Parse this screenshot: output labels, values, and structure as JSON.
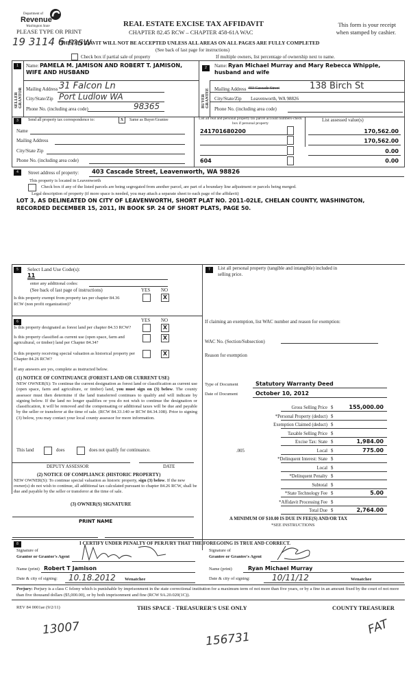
{
  "header": {
    "logo_line1": "Department of",
    "logo_line2": "Revenue",
    "logo_line3": "Washington State",
    "please_type": "PLEASE TYPE OR PRINT",
    "title": "REAL ESTATE EXCISE TAX AFFIDAVIT",
    "chapter": "CHAPTER 82.45 RCW – CHAPTER 458-61A WAC",
    "receipt_line1": "This form is your receipt",
    "receipt_line2": "when stamped by cashier.",
    "warning": "THIS AFFIDAVIT WILL NOT BE ACCEPTED UNLESS ALL AREAS ON ALL PAGES ARE FULLY COMPLETED",
    "see_back": "(See back of last page for instructions)",
    "partial_sale": "Check box if partial sale of property",
    "multiple_owners": "If multiple owners, list percentage of ownership next to name.",
    "handwritten_note": "19 3114 6 msw"
  },
  "seller": {
    "num": "1",
    "side_label": "SELLER GRANTOR",
    "name_label": "Name:",
    "name": "PAMELA M. JAMISON AND ROBERT T. JAMISON, WIFE AND HUSBAND",
    "mailing_label": "Mailing Address",
    "mailing": "31 Falcon Ln",
    "city_label": "City/State/Zip",
    "city": "Port Ludlow WA",
    "phone_label": "Phone No. (including area code)",
    "phone": "98365"
  },
  "buyer": {
    "num": "2",
    "side_label": "BUYER GRANTEE",
    "name_label": "Name:",
    "name": "Ryan Michael Murray and Mary Rebecca Whipple, husband and wife",
    "mailing_label": "Mailing Address",
    "mailing_struck": "403 Cascade Street",
    "mailing": "138 Birch St",
    "city_label": "City/State/Zip",
    "city": "Leavenworth, WA 98826",
    "phone_label": "Phone No. (including area code)"
  },
  "section3": {
    "num": "3",
    "send_label": "Send all property tax correspondence to:",
    "same_checked": "X",
    "same_label": "Same as Buyer/Grantee",
    "name_label": "Name",
    "mailing_label": "Mailing Address",
    "city_label": "City/State Zip",
    "phone_label": "Phone No. (including area code)",
    "parcel_header": "List all real and personal property tax parcel account numbers-check box if personal property",
    "assessed_header": "List assessed value(s)",
    "parcels": [
      "241701680200",
      "",
      "",
      "604"
    ],
    "values": [
      "170,562.00",
      "170,562.00",
      "0.00",
      "0.00"
    ]
  },
  "section4": {
    "num": "4",
    "street_label": "Street address of property:",
    "street": "403 Cascade Street, Leavenworth, WA 98826",
    "located": "This property is located in Leavenworth",
    "segregated": "Check box if any of the listed parcels are being segregated from another parcel, are part of a boundary line adjustment or parcels being merged.",
    "legal_label": "Legal description of property (if more space is needed, you may attach a separate sheet to each page of the affidavit)",
    "legal_line1": "LOT 3, AS DELINEATED ON CITY OF LEAVENWORTH, SHORT PLAT NO. 2011-02LE, CHELAN COUNTY, WASHINGTON,",
    "legal_line2": "RECORDED DECEMBER 15, 2011, IN BOOK SP. 24 OF SHORT PLATS, PAGE 50."
  },
  "section5": {
    "num": "5",
    "label": "Select Land Use Code(s):",
    "code": "11",
    "additional": "enter any additional codes:",
    "see_back": "(See back of last page of instructions)",
    "yes": "YES",
    "no": "NO",
    "exempt_q": "Is this property exempt from property tax per chapter 84.36 RCW (non profit organization)?",
    "exempt_no": "X"
  },
  "section6": {
    "num": "6",
    "yes": "YES",
    "no": "NO",
    "q1": "Is this property designated as forest land per chapter 84.33 RCW?",
    "q2": "Is this property classified as current use (open space, farm and agricultural, or timber) land per Chapter 84.34?",
    "q3": "Is this property receiving special valuation as historical property per Chapter 84.26 RCW?",
    "mark": "X",
    "if_yes": "If any answers are yes, complete as instructed below.",
    "notice1_title": "(1) NOTICE OF CONTINUANCE (FOREST LAND OR CURRENT USE)",
    "notice1_a": "NEW OWNER(S): To continue the current designation as forest land or classification as current use (open space, farm and agriculture, or timber) land, ",
    "notice1_bold": "you must sign on (3) below",
    "notice1_b": ". The county assessor must then determine if the land transferred continues to qualify and will indicate by signing below. If the land no longer qualifies or you do not wish to continue the designation or classification, it will be removed and the compensating or additional taxes will be due and payable by the seller or transferor at the time of sale. (RCW 84.33.140 or RCW 84.34.108). Prior to signing (3) below, you may contact your local county assessor for more information.",
    "this_land": "This land",
    "does": "does",
    "does_not": "does not qualify for continuance.",
    "deputy": "DEPUTY ASSESSOR",
    "date": "DATE",
    "notice2_title": "(2) NOTICE OF COMPLIANCE (HISTORIC PROPERTY)",
    "notice2_a": "NEW OWNER(S): To continue special valuation as historic property, ",
    "notice2_bold": "sign (3) below",
    "notice2_b": ". If the new owner(s) do not wish to continue, all additional tax calculated pursuant to chapter 84.26 RCW, shall be due and payable by the seller or transferor at the time of sale.",
    "owner_sig": "(3) OWNER(S) SIGNATURE",
    "print_name": "PRINT NAME"
  },
  "section7": {
    "num": "7",
    "label": "List all personal property (tangible and intangible) included in selling price.",
    "exemption_label": "If claiming an exemption, list WAC number and reason for exemption:",
    "wac_label": "WAC No. (Section/Subsection)",
    "reason_label": "Reason for exemption",
    "type_label": "Type of Document",
    "type": "Statutory Warranty Deed",
    "date_label": "Date of Document",
    "date": "October 10, 2012"
  },
  "totals": [
    {
      "label": "Gross Selling Price",
      "value": "155,000.00"
    },
    {
      "label": "*Personal Property (deduct)",
      "value": ""
    },
    {
      "label": "Exemption Claimed (deduct)",
      "value": ""
    },
    {
      "label": "Taxable Selling Price",
      "value": ""
    },
    {
      "label": "Excise Tax:  State",
      "value": "1,984.00"
    },
    {
      "label": "Local",
      "prefix": ".005",
      "value": "775.00"
    },
    {
      "label": "*Delinquent Interest:  State",
      "value": ""
    },
    {
      "label": "Local",
      "value": ""
    },
    {
      "label": "*Delinquent Penalty",
      "value": ""
    },
    {
      "label": "Subtotal",
      "value": ""
    },
    {
      "label": "*State Technology Fee",
      "value": "5.00"
    },
    {
      "label": "*Affidavit Processing Fee",
      "value": ""
    },
    {
      "label": "Total Due",
      "value": "2,764.00"
    }
  ],
  "currency": "$",
  "minimum": "A MINIMUM OF $10.00 IS DUE IN FEE(S) AND/OR TAX",
  "see_instructions": "*SEE INSTRUCTIONS",
  "section8": {
    "num": "8",
    "certify": "I CERTIFY UNDER PENALTY OF PERJURY THAT THE FOREGOING IS TRUE AND CORRECT.",
    "sig_of": "Signature of",
    "grantor_agent": "Grantor or Grantor's Agent",
    "grantee_agent": "Grantee or Grantee's Agent",
    "name_print": "Name (print)",
    "grantor_name": "Robert T Jamison",
    "grantee_name": "Ryan Michael Murray",
    "date_city": "Date & city of signing:",
    "grantor_date": "10.18.2012",
    "grantee_date": "10/11/12",
    "grantor_city": "Wenatchee",
    "grantee_city": "Wenatchee"
  },
  "perjury_label": "Perjury:",
  "perjury_text": "Perjury is a class C felony which is punishable by imprisonment in the state correctional institution for a maximum term of not more than five years, or by a fine in an amount fixed by the court of not more than five thousand dollars ($5,000.00), or by both imprisonment and fine (RCW 9A.20.020(1C)).",
  "footer": {
    "rev": "REV 84 0001ae (9/2/11)",
    "treasurer_use": "THIS SPACE - TREASURER'S USE ONLY",
    "county_treasurer": "COUNTY TREASURER",
    "hand1": "13007",
    "hand2": "156731",
    "hand3": "FAT"
  }
}
